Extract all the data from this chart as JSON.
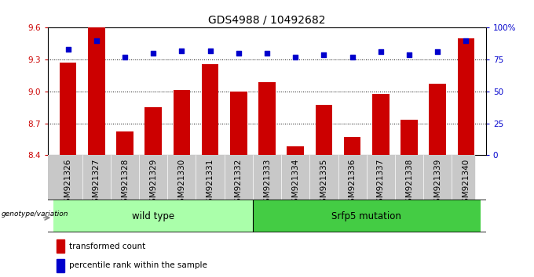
{
  "title": "GDS4988 / 10492682",
  "samples": [
    "GSM921326",
    "GSM921327",
    "GSM921328",
    "GSM921329",
    "GSM921330",
    "GSM921331",
    "GSM921332",
    "GSM921333",
    "GSM921334",
    "GSM921335",
    "GSM921336",
    "GSM921337",
    "GSM921338",
    "GSM921339",
    "GSM921340"
  ],
  "bar_values": [
    9.27,
    9.6,
    8.62,
    8.85,
    9.01,
    9.26,
    9.0,
    9.09,
    8.48,
    8.87,
    8.57,
    8.98,
    8.73,
    9.07,
    9.5
  ],
  "percentile_values": [
    83,
    90,
    77,
    80,
    82,
    82,
    80,
    80,
    77,
    79,
    77,
    81,
    79,
    81,
    90
  ],
  "bar_color": "#CC0000",
  "dot_color": "#0000CC",
  "ylim_left": [
    8.4,
    9.6
  ],
  "ylim_right": [
    0,
    100
  ],
  "yticks_left": [
    8.4,
    8.7,
    9.0,
    9.3,
    9.6
  ],
  "yticks_right": [
    0,
    25,
    50,
    75,
    100
  ],
  "ytick_labels_right": [
    "0",
    "25",
    "50",
    "75",
    "100%"
  ],
  "grid_values": [
    8.7,
    9.0,
    9.3
  ],
  "groups": [
    {
      "label": "wild type",
      "start": 0,
      "end": 7,
      "color": "#aaffaa"
    },
    {
      "label": "Srfp5 mutation",
      "start": 7,
      "end": 15,
      "color": "#44cc44"
    }
  ],
  "legend_items": [
    {
      "label": "transformed count",
      "color": "#CC0000"
    },
    {
      "label": "percentile rank within the sample",
      "color": "#0000CC"
    }
  ],
  "genotype_label": "genotype/variation",
  "tick_area_color": "#c8c8c8",
  "bar_width": 0.6,
  "title_fontsize": 10,
  "tick_fontsize": 7.5,
  "label_fontsize": 8.5
}
